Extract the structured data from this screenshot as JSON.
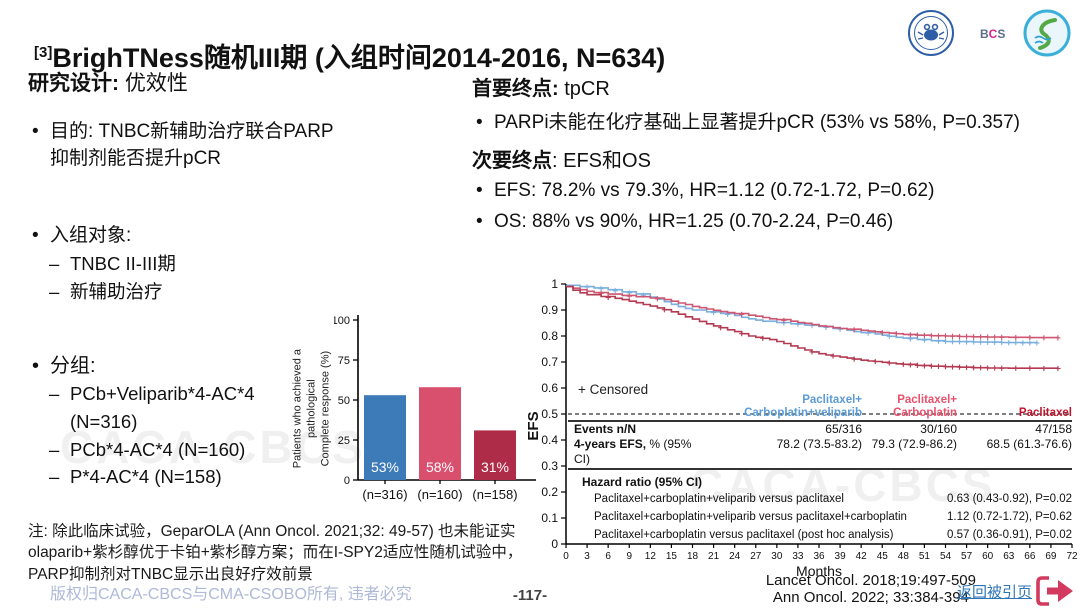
{
  "title": {
    "sup": "[3]",
    "text": "BrighTNess随机III期 (入组时间2014-2016, N=634)"
  },
  "logos": {
    "bcs_letters": [
      "B",
      "C",
      "S"
    ]
  },
  "left": {
    "heading_bold": "研究设计:",
    "heading_rest": " 优效性",
    "purpose": "目的: TNBC新辅助治疗联合PARP抑制剂能否提升pCR",
    "enroll_label": "入组对象:",
    "enroll_items": [
      "TNBC II-III期",
      "新辅助治疗"
    ],
    "groups_label": "分组:",
    "group_items": [
      "PCb+Veliparib*4-AC*4\n(N=316)",
      "PCb*4-AC*4 (N=160)",
      "P*4-AC*4 (N=158)"
    ]
  },
  "right": {
    "primary_bold": "首要终点:",
    "primary_rest": " tpCR",
    "primary_bullet": "PARPi未能在化疗基础上显著提升pCR (53% vs 58%, P=0.357)",
    "secondary_bold": "次要终点",
    "secondary_rest": ": EFS和OS",
    "secondary_bullets": [
      "EFS: 78.2% vs 79.3%, HR=1.12 (0.72-1.72, P=0.62)",
      "OS: 88% vs 90%, HR=1.25 (0.70-2.24, P=0.46)"
    ]
  },
  "chart_data": [
    {
      "type": "bar",
      "ylabel": "Patients who achieved a\npathological\nComplete response (%)",
      "categories": [
        "(n=316)",
        "(n=160)",
        "(n=158)"
      ],
      "values": [
        53,
        58,
        31
      ],
      "labels": [
        "53%",
        "58%",
        "31%"
      ],
      "colors": [
        "#3d7ab8",
        "#d8506e",
        "#ae2c47"
      ],
      "ylim": [
        0,
        100
      ],
      "yticks": [
        0,
        25,
        50,
        75,
        100
      ]
    },
    {
      "type": "line",
      "subtype": "kaplan-meier",
      "xlabel": "Months",
      "ylabel": "EFS",
      "xlim": [
        0,
        72
      ],
      "xtick_step": 3,
      "ylim": [
        0,
        1
      ],
      "ytick_step": 0.1,
      "ref_line_y": 0.5,
      "legend": "+ Censored",
      "series": [
        {
          "name": "Paclitaxel+Carboplatin+veliparib",
          "color": "#7bafdf",
          "points": [
            [
              0,
              0.995
            ],
            [
              2,
              0.99
            ],
            [
              4,
              0.985
            ],
            [
              6,
              0.978
            ],
            [
              8,
              0.97
            ],
            [
              10,
              0.962
            ],
            [
              12,
              0.95
            ],
            [
              13,
              0.942
            ],
            [
              14,
              0.932
            ],
            [
              15,
              0.922
            ],
            [
              16,
              0.913
            ],
            [
              17,
              0.906
            ],
            [
              18,
              0.9
            ],
            [
              20,
              0.893
            ],
            [
              22,
              0.887
            ],
            [
              24,
              0.879
            ],
            [
              25,
              0.872
            ],
            [
              26,
              0.866
            ],
            [
              27,
              0.861
            ],
            [
              28,
              0.857
            ],
            [
              30,
              0.852
            ],
            [
              32,
              0.847
            ],
            [
              34,
              0.842
            ],
            [
              36,
              0.837
            ],
            [
              38,
              0.829
            ],
            [
              40,
              0.822
            ],
            [
              41,
              0.817
            ],
            [
              42,
              0.813
            ],
            [
              44,
              0.808
            ],
            [
              45,
              0.803
            ],
            [
              46,
              0.799
            ],
            [
              47,
              0.795
            ],
            [
              48,
              0.792
            ],
            [
              50,
              0.787
            ],
            [
              52,
              0.782
            ],
            [
              54,
              0.779
            ],
            [
              58,
              0.777
            ],
            [
              62,
              0.775
            ],
            [
              67,
              0.773
            ]
          ],
          "censored": [
            [
              3,
              0.988
            ],
            [
              5,
              0.982
            ],
            [
              7,
              0.974
            ],
            [
              9,
              0.966
            ],
            [
              11,
              0.957
            ],
            [
              21,
              0.89
            ],
            [
              23,
              0.883
            ],
            [
              31,
              0.85
            ],
            [
              33,
              0.845
            ],
            [
              35,
              0.84
            ],
            [
              37,
              0.833
            ],
            [
              39,
              0.826
            ],
            [
              43,
              0.811
            ],
            [
              46,
              0.799
            ],
            [
              49,
              0.789
            ],
            [
              51,
              0.784
            ],
            [
              53,
              0.78
            ],
            [
              54,
              0.779
            ],
            [
              55,
              0.778
            ],
            [
              56,
              0.778
            ],
            [
              57,
              0.777
            ],
            [
              58,
              0.777
            ],
            [
              59,
              0.776
            ],
            [
              60,
              0.776
            ],
            [
              61,
              0.775
            ],
            [
              62,
              0.775
            ],
            [
              63,
              0.774
            ],
            [
              64,
              0.774
            ],
            [
              65,
              0.773
            ],
            [
              66,
              0.773
            ],
            [
              67,
              0.773
            ]
          ]
        },
        {
          "name": "Paclitaxel+Carboplatin",
          "color": "#cd5672",
          "points": [
            [
              0,
              0.99
            ],
            [
              1,
              0.984
            ],
            [
              2,
              0.978
            ],
            [
              3,
              0.972
            ],
            [
              4,
              0.967
            ],
            [
              6,
              0.961
            ],
            [
              8,
              0.956
            ],
            [
              10,
              0.951
            ],
            [
              12,
              0.946
            ],
            [
              14,
              0.94
            ],
            [
              15,
              0.934
            ],
            [
              16,
              0.927
            ],
            [
              17,
              0.921
            ],
            [
              18,
              0.914
            ],
            [
              19,
              0.909
            ],
            [
              20,
              0.904
            ],
            [
              21,
              0.899
            ],
            [
              22,
              0.894
            ],
            [
              23,
              0.89
            ],
            [
              24,
              0.886
            ],
            [
              26,
              0.88
            ],
            [
              27,
              0.876
            ],
            [
              28,
              0.871
            ],
            [
              29,
              0.866
            ],
            [
              30,
              0.863
            ],
            [
              32,
              0.857
            ],
            [
              33,
              0.852
            ],
            [
              34,
              0.849
            ],
            [
              35,
              0.844
            ],
            [
              36,
              0.839
            ],
            [
              37,
              0.836
            ],
            [
              38,
              0.832
            ],
            [
              39,
              0.829
            ],
            [
              40,
              0.826
            ],
            [
              42,
              0.822
            ],
            [
              43,
              0.819
            ],
            [
              44,
              0.816
            ],
            [
              45,
              0.813
            ],
            [
              46,
              0.811
            ],
            [
              47,
              0.809
            ],
            [
              48,
              0.806
            ],
            [
              50,
              0.803
            ],
            [
              52,
              0.801
            ],
            [
              54,
              0.8
            ],
            [
              56,
              0.798
            ],
            [
              58,
              0.797
            ],
            [
              60,
              0.796
            ],
            [
              63,
              0.795
            ],
            [
              66,
              0.794
            ],
            [
              70,
              0.793
            ]
          ],
          "censored": [
            [
              5,
              0.964
            ],
            [
              9,
              0.953
            ],
            [
              13,
              0.943
            ],
            [
              25,
              0.883
            ],
            [
              31,
              0.86
            ],
            [
              41,
              0.824
            ],
            [
              45,
              0.813
            ],
            [
              47,
              0.809
            ],
            [
              49,
              0.804
            ],
            [
              50,
              0.803
            ],
            [
              51,
              0.802
            ],
            [
              52,
              0.801
            ],
            [
              53,
              0.8
            ],
            [
              54,
              0.8
            ],
            [
              55,
              0.799
            ],
            [
              56,
              0.798
            ],
            [
              57,
              0.798
            ],
            [
              58,
              0.797
            ],
            [
              59,
              0.797
            ],
            [
              60,
              0.796
            ],
            [
              61,
              0.796
            ],
            [
              62,
              0.795
            ],
            [
              64,
              0.794
            ],
            [
              66,
              0.794
            ],
            [
              68,
              0.793
            ],
            [
              70,
              0.793
            ]
          ]
        },
        {
          "name": "Paclitaxel",
          "color": "#b43a52",
          "points": [
            [
              0,
              0.99
            ],
            [
              1,
              0.976
            ],
            [
              2,
              0.966
            ],
            [
              3,
              0.959
            ],
            [
              5,
              0.952
            ],
            [
              7,
              0.945
            ],
            [
              8,
              0.94
            ],
            [
              9,
              0.934
            ],
            [
              10,
              0.928
            ],
            [
              11,
              0.921
            ],
            [
              12,
              0.915
            ],
            [
              13,
              0.908
            ],
            [
              14,
              0.901
            ],
            [
              15,
              0.893
            ],
            [
              16,
              0.884
            ],
            [
              17,
              0.874
            ],
            [
              18,
              0.865
            ],
            [
              19,
              0.856
            ],
            [
              20,
              0.847
            ],
            [
              21,
              0.839
            ],
            [
              22,
              0.832
            ],
            [
              23,
              0.824
            ],
            [
              24,
              0.817
            ],
            [
              25,
              0.809
            ],
            [
              26,
              0.8
            ],
            [
              27,
              0.795
            ],
            [
              28,
              0.791
            ],
            [
              29,
              0.786
            ],
            [
              30,
              0.779
            ],
            [
              31,
              0.771
            ],
            [
              32,
              0.762
            ],
            [
              33,
              0.754
            ],
            [
              34,
              0.746
            ],
            [
              35,
              0.739
            ],
            [
              36,
              0.732
            ],
            [
              37,
              0.727
            ],
            [
              38,
              0.723
            ],
            [
              39,
              0.719
            ],
            [
              40,
              0.715
            ],
            [
              41,
              0.711
            ],
            [
              42,
              0.707
            ],
            [
              43,
              0.704
            ],
            [
              44,
              0.702
            ],
            [
              45,
              0.699
            ],
            [
              46,
              0.696
            ],
            [
              47,
              0.693
            ],
            [
              48,
              0.691
            ],
            [
              50,
              0.687
            ],
            [
              52,
              0.684
            ],
            [
              54,
              0.682
            ],
            [
              56,
              0.68
            ],
            [
              58,
              0.678
            ],
            [
              60,
              0.677
            ],
            [
              63,
              0.676
            ],
            [
              66,
              0.676
            ],
            [
              70,
              0.675
            ]
          ],
          "censored": [
            [
              6,
              0.948
            ],
            [
              14,
              0.901
            ],
            [
              22,
              0.832
            ],
            [
              25,
              0.809
            ],
            [
              28,
              0.791
            ],
            [
              35,
              0.739
            ],
            [
              38,
              0.723
            ],
            [
              41,
              0.711
            ],
            [
              44,
              0.702
            ],
            [
              46,
              0.696
            ],
            [
              48,
              0.691
            ],
            [
              49,
              0.689
            ],
            [
              50,
              0.687
            ],
            [
              51,
              0.685
            ],
            [
              52,
              0.684
            ],
            [
              53,
              0.683
            ],
            [
              54,
              0.682
            ],
            [
              55,
              0.681
            ],
            [
              56,
              0.68
            ],
            [
              57,
              0.679
            ],
            [
              58,
              0.678
            ],
            [
              59,
              0.678
            ],
            [
              60,
              0.677
            ],
            [
              61,
              0.677
            ],
            [
              62,
              0.676
            ],
            [
              64,
              0.676
            ],
            [
              66,
              0.676
            ],
            [
              68,
              0.675
            ],
            [
              70,
              0.675
            ]
          ]
        }
      ]
    }
  ],
  "km_table": {
    "col_headers": [
      {
        "lines": [
          "Paclitaxel+",
          "Carboplatin+veliparib"
        ],
        "color": "#5b9bd5"
      },
      {
        "lines": [
          "Paclitaxel+",
          "Carboplatin"
        ],
        "color": "#e8506b"
      },
      {
        "lines": [
          "Paclitaxel"
        ],
        "color": "#c0132c"
      }
    ],
    "rows": [
      {
        "label_bold": "Events n/N",
        "label_rest": "",
        "values": [
          "65/316",
          "30/160",
          "47/158"
        ]
      },
      {
        "label_bold": "4-years EFS,",
        "label_rest": " % (95% CI)",
        "values": [
          "78.2 (73.5-83.2)",
          "79.3 (72.9-86.2)",
          "68.5 (61.3-76.6)"
        ]
      }
    ],
    "hr_heading": "Hazard ratio (95% CI)",
    "hr_rows": [
      {
        "label": "Paclitaxel+carboplatin+veliparib versus paclitaxel",
        "value": "0.63 (0.43-0.92), P=0.02"
      },
      {
        "label": "Paclitaxel+carboplatin+veliparib versus paclitaxel+carboplatin",
        "value": "1.12 (0.72-1.72), P=0.62"
      },
      {
        "label": "Paclitaxel+carboplatin versus paclitaxel (post hoc analysis)",
        "value": "0.57 (0.36-0.91), P=0.02"
      }
    ]
  },
  "note": "注: 除此临床试验，GeparOLA (Ann Oncol. 2021;32: 49-57) 也未能证实olaparib+紫杉醇优于卡铂+紫杉醇方案；而在I-SPY2适应性随机试验中，PARP抑制剂对TNBC显示出良好疗效前景",
  "footer": {
    "copyright": "版权归CACA-CBCS与CMA-CSOBO所有, 违者必究",
    "page": "-117-",
    "references": [
      "Lancet Oncol. 2018;19:497-509",
      "Ann Oncol. 2022; 33:384-394"
    ],
    "back_link": "返回被引页"
  },
  "watermark": "CACA-CBCS"
}
